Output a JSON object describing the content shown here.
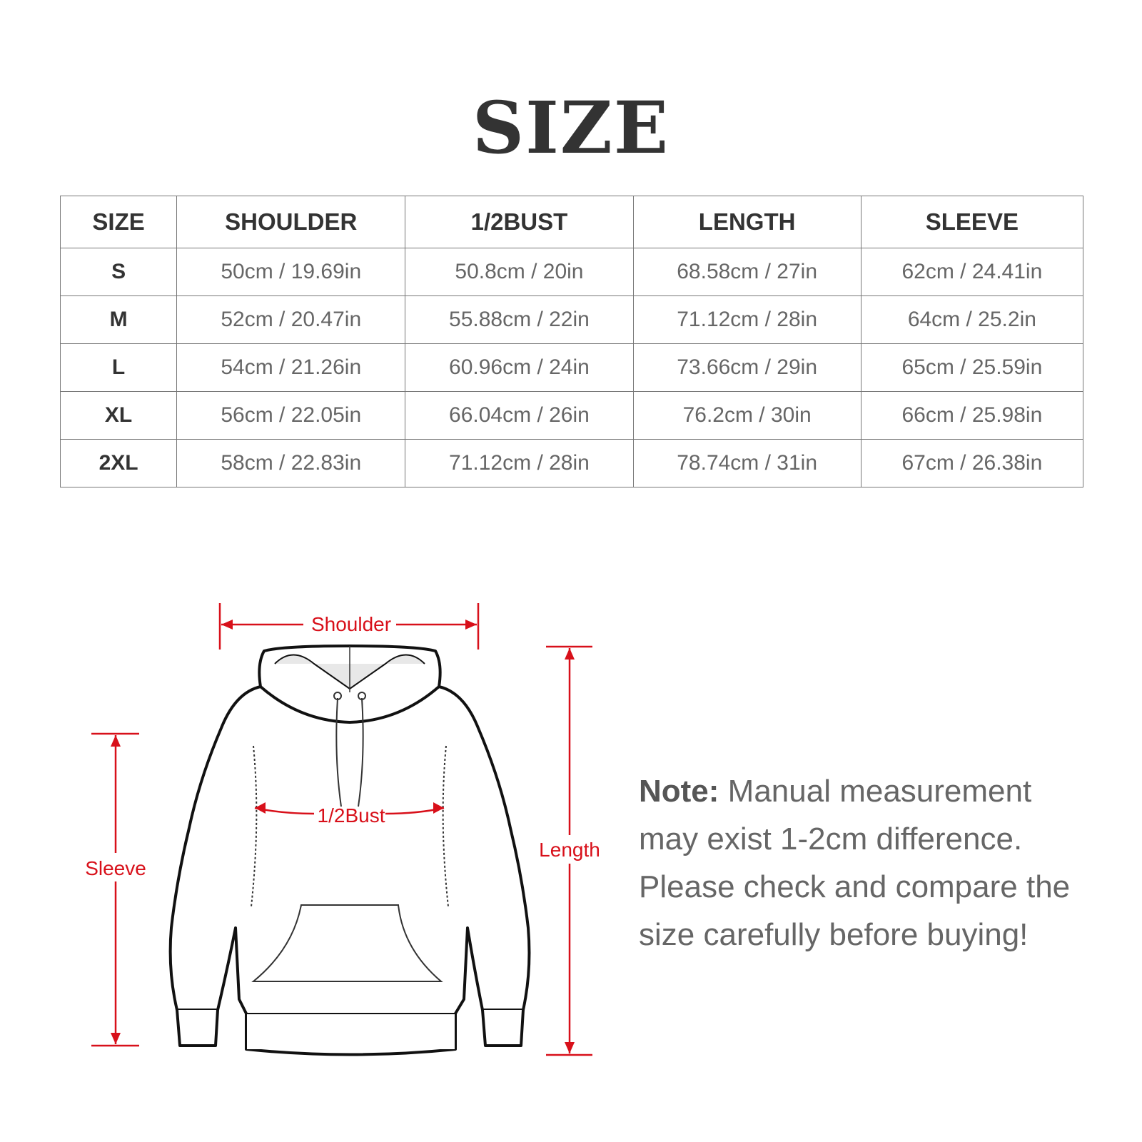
{
  "title": "SIZE",
  "table": {
    "headers": [
      "SIZE",
      "SHOULDER",
      "1/2BUST",
      "LENGTH",
      "SLEEVE"
    ],
    "rows": [
      [
        "S",
        "50cm / 19.69in",
        "50.8cm / 20in",
        "68.58cm / 27in",
        "62cm / 24.41in"
      ],
      [
        "M",
        "52cm / 20.47in",
        "55.88cm / 22in",
        "71.12cm / 28in",
        "64cm / 25.2in"
      ],
      [
        "L",
        "54cm / 21.26in",
        "60.96cm / 24in",
        "73.66cm / 29in",
        "65cm / 25.59in"
      ],
      [
        "XL",
        "56cm / 22.05in",
        "66.04cm / 26in",
        "76.2cm / 30in",
        "66cm / 25.98in"
      ],
      [
        "2XL",
        "58cm / 22.83in",
        "71.12cm / 28in",
        "78.74cm / 31in",
        "67cm / 26.38in"
      ]
    ]
  },
  "diagram": {
    "shoulder": "Shoulder",
    "bust": "1/2Bust",
    "length": "Length",
    "sleeve": "Sleeve",
    "accent_color": "#d8101a"
  },
  "note": {
    "label": "Note:",
    "text": " Manual measurement may exist 1-2cm difference. Please check and compare the size carefully before buying!"
  }
}
